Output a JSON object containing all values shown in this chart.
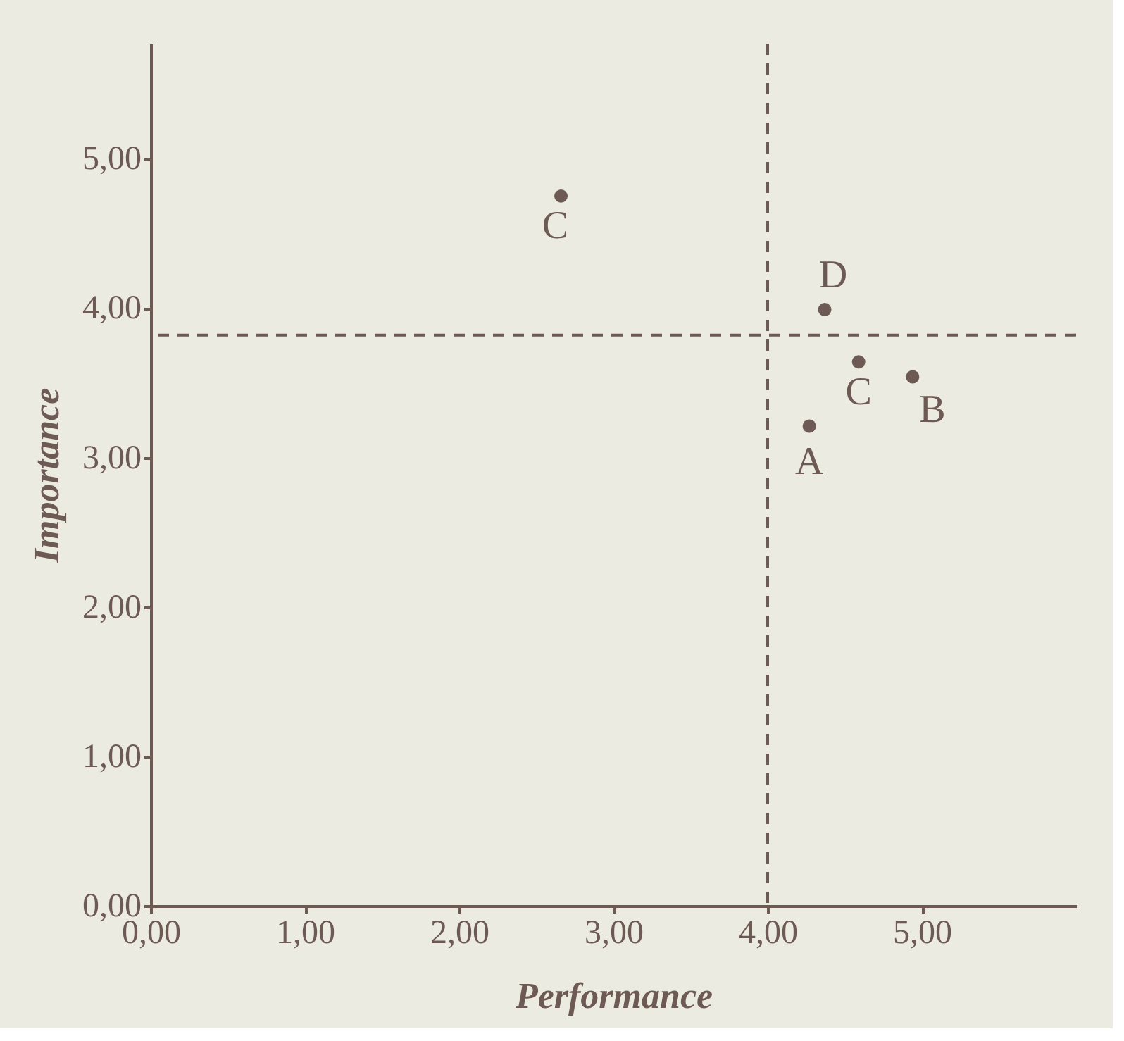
{
  "chart_data": {
    "type": "scatter",
    "xlabel": "Performance",
    "ylabel": "Importance",
    "x": [
      2.66,
      4.37,
      4.59,
      4.94,
      4.27
    ],
    "series": [
      {
        "color": "#6e5a55",
        "values": [
          4.75,
          3.99,
          3.64,
          3.54,
          3.21
        ],
        "value_labels": [
          "C",
          "D",
          "C",
          "B",
          "A"
        ]
      }
    ],
    "xlim": [
      0,
      6.0
    ],
    "ylim": [
      0,
      5.77
    ],
    "xticks": [
      {
        "value": 0,
        "label": "0,00"
      },
      {
        "value": 1,
        "label": "1,00"
      },
      {
        "value": 2,
        "label": "2,00"
      },
      {
        "value": 3,
        "label": "3,00"
      },
      {
        "value": 4,
        "label": "4,00"
      },
      {
        "value": 5,
        "label": "5,00"
      }
    ],
    "yticks": [
      {
        "value": 0,
        "label": "0,00"
      },
      {
        "value": 1,
        "label": "1,00"
      },
      {
        "value": 2,
        "label": "2,00"
      },
      {
        "value": 3,
        "label": "3,00"
      },
      {
        "value": 4,
        "label": "4,00"
      },
      {
        "value": 5,
        "label": "5,00"
      }
    ],
    "ref_lines": [
      {
        "axis": "x",
        "value": 4.0,
        "line_style": "dashed",
        "color": "#6e5a55"
      },
      {
        "axis": "y",
        "value": 3.82,
        "line_style": "dashed",
        "color": "#6e5a55"
      }
    ],
    "grid": false,
    "marker": "circle"
  }
}
